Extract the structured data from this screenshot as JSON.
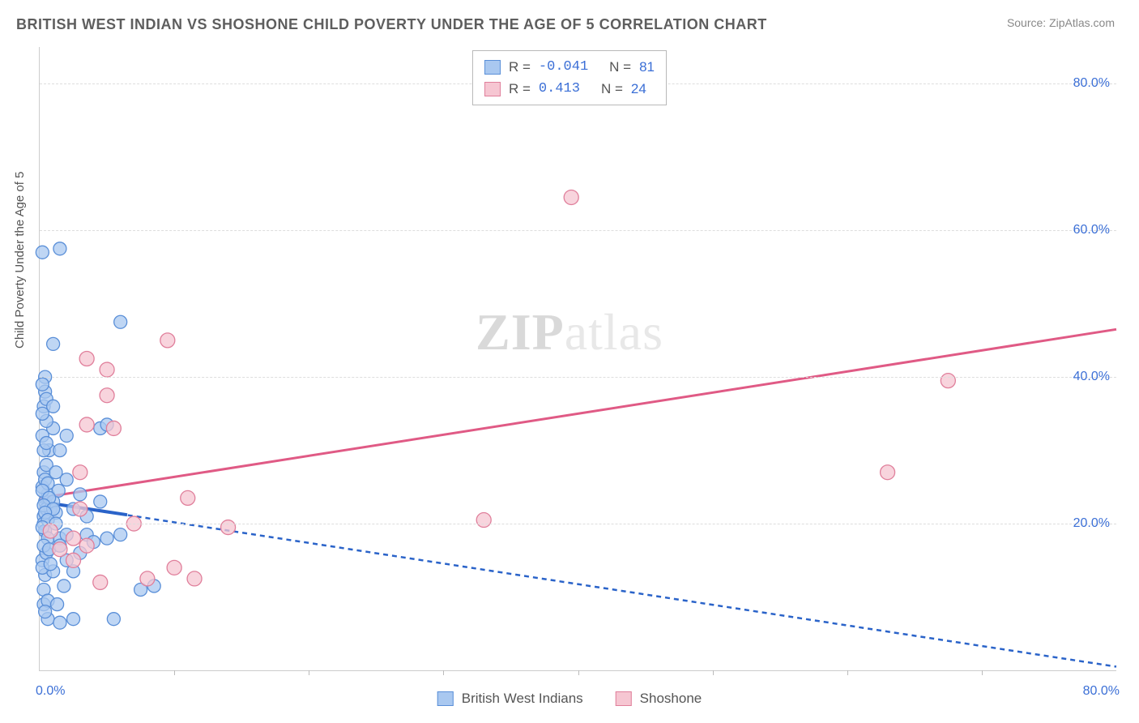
{
  "header": {
    "title": "BRITISH WEST INDIAN VS SHOSHONE CHILD POVERTY UNDER THE AGE OF 5 CORRELATION CHART",
    "source": "Source: ZipAtlas.com"
  },
  "watermark": {
    "bold": "ZIP",
    "light": "atlas"
  },
  "chart": {
    "type": "scatter",
    "y_axis_title": "Child Poverty Under the Age of 5",
    "xlim": [
      0,
      80
    ],
    "ylim": [
      0,
      85
    ],
    "y_ticks": [
      20,
      40,
      60,
      80
    ],
    "y_tick_labels": [
      "20.0%",
      "40.0%",
      "60.0%",
      "80.0%"
    ],
    "x_min_label": "0.0%",
    "x_max_label": "80.0%",
    "x_minor_ticks": [
      10,
      20,
      30,
      40,
      50,
      60,
      70
    ],
    "grid_color": "#dddddd",
    "background_color": "#ffffff",
    "tick_label_color": "#3b6fd6",
    "axis_title_color": "#555555",
    "legend_series": [
      {
        "label": "British West Indians",
        "fill": "#a9c8f0",
        "stroke": "#5a8fd8"
      },
      {
        "label": "Shoshone",
        "fill": "#f6c6d2",
        "stroke": "#e07f9b"
      }
    ],
    "corr_box": {
      "rows": [
        {
          "swatch_fill": "#a9c8f0",
          "swatch_stroke": "#5a8fd8",
          "r_label": "R =",
          "r_value": "-0.041",
          "n_label": "N =",
          "n_value": "81"
        },
        {
          "swatch_fill": "#f6c6d2",
          "swatch_stroke": "#e07f9b",
          "r_label": "R =",
          "r_value": " 0.413",
          "n_label": "N =",
          "n_value": "24"
        }
      ]
    },
    "series_a": {
      "name": "British West Indians",
      "fill": "#a9c8f0",
      "stroke": "#5a8fd8",
      "marker_radius": 8,
      "marker_opacity": 0.75,
      "trend": {
        "x1": 0,
        "y1": 23,
        "x2": 80,
        "y2": 0.5,
        "color": "#2a63c9",
        "width": 2.5,
        "dash": "6,5",
        "solid_x1": 0,
        "solid_y1": 23,
        "solid_x2": 6.5,
        "solid_y2": 21.2
      },
      "points": [
        [
          0.2,
          57
        ],
        [
          1.5,
          57.5
        ],
        [
          1.0,
          44.5
        ],
        [
          6.0,
          47.5
        ],
        [
          0.3,
          21
        ],
        [
          0.4,
          23
        ],
        [
          0.5,
          22
        ],
        [
          0.6,
          24
        ],
        [
          0.2,
          25
        ],
        [
          0.8,
          22
        ],
        [
          1.0,
          23
        ],
        [
          1.2,
          21.5
        ],
        [
          1.4,
          24.5
        ],
        [
          0.3,
          20
        ],
        [
          0.4,
          19
        ],
        [
          0.6,
          18
        ],
        [
          1.0,
          33
        ],
        [
          0.5,
          34
        ],
        [
          0.7,
          30
        ],
        [
          2.0,
          32
        ],
        [
          0.3,
          36
        ],
        [
          0.4,
          38
        ],
        [
          4.5,
          33
        ],
        [
          5.0,
          33.5
        ],
        [
          0.2,
          15
        ],
        [
          0.5,
          16
        ],
        [
          1.5,
          18
        ],
        [
          2.0,
          18.5
        ],
        [
          3.5,
          18.5
        ],
        [
          5.0,
          18
        ],
        [
          6.0,
          18.5
        ],
        [
          0.4,
          13
        ],
        [
          1.0,
          13.5
        ],
        [
          2.5,
          13.5
        ],
        [
          0.3,
          11
        ],
        [
          1.8,
          11.5
        ],
        [
          0.6,
          7
        ],
        [
          1.5,
          6.5
        ],
        [
          2.5,
          7
        ],
        [
          5.5,
          7
        ],
        [
          7.5,
          11
        ],
        [
          8.5,
          11.5
        ],
        [
          0.3,
          27
        ],
        [
          0.5,
          28
        ],
        [
          1.2,
          27
        ],
        [
          2.0,
          26
        ],
        [
          0.4,
          40
        ],
        [
          0.2,
          39
        ],
        [
          0.2,
          32
        ],
        [
          0.3,
          30
        ],
        [
          0.5,
          31
        ],
        [
          1.5,
          30
        ],
        [
          0.4,
          26
        ],
        [
          0.6,
          25.5
        ],
        [
          0.2,
          24.5
        ],
        [
          0.7,
          23.5
        ],
        [
          0.3,
          22.5
        ],
        [
          1.0,
          22
        ],
        [
          0.4,
          21.5
        ],
        [
          0.6,
          20.5
        ],
        [
          0.2,
          19.5
        ],
        [
          1.2,
          20
        ],
        [
          2.5,
          22
        ],
        [
          3.0,
          24
        ],
        [
          3.5,
          21
        ],
        [
          4.5,
          23
        ],
        [
          0.3,
          17
        ],
        [
          0.7,
          16.5
        ],
        [
          1.5,
          17
        ],
        [
          0.2,
          14
        ],
        [
          0.8,
          14.5
        ],
        [
          2.0,
          15
        ],
        [
          0.3,
          9
        ],
        [
          0.6,
          9.5
        ],
        [
          1.3,
          9
        ],
        [
          0.4,
          8
        ],
        [
          3.0,
          16
        ],
        [
          4.0,
          17.5
        ],
        [
          0.2,
          35
        ],
        [
          0.5,
          37
        ],
        [
          1.0,
          36
        ]
      ]
    },
    "series_b": {
      "name": "Shoshone",
      "fill": "#f6c6d2",
      "stroke": "#e07f9b",
      "marker_radius": 9,
      "marker_opacity": 0.75,
      "trend": {
        "x1": 0,
        "y1": 23.5,
        "x2": 80,
        "y2": 46.5,
        "color": "#e05a85",
        "width": 3
      },
      "points": [
        [
          39.5,
          64.5
        ],
        [
          67.5,
          39.5
        ],
        [
          63.0,
          27.0
        ],
        [
          9.5,
          45.0
        ],
        [
          3.5,
          42.5
        ],
        [
          5.0,
          41.0
        ],
        [
          5.0,
          37.5
        ],
        [
          3.5,
          33.5
        ],
        [
          5.5,
          33.0
        ],
        [
          3.0,
          27.0
        ],
        [
          11.0,
          23.5
        ],
        [
          33.0,
          20.5
        ],
        [
          7.0,
          20.0
        ],
        [
          14.0,
          19.5
        ],
        [
          0.8,
          19.0
        ],
        [
          2.5,
          18.0
        ],
        [
          3.5,
          17.0
        ],
        [
          10.0,
          14.0
        ],
        [
          11.5,
          12.5
        ],
        [
          8.0,
          12.5
        ],
        [
          4.5,
          12.0
        ],
        [
          2.5,
          15.0
        ],
        [
          1.5,
          16.5
        ],
        [
          3.0,
          22.0
        ]
      ]
    }
  }
}
